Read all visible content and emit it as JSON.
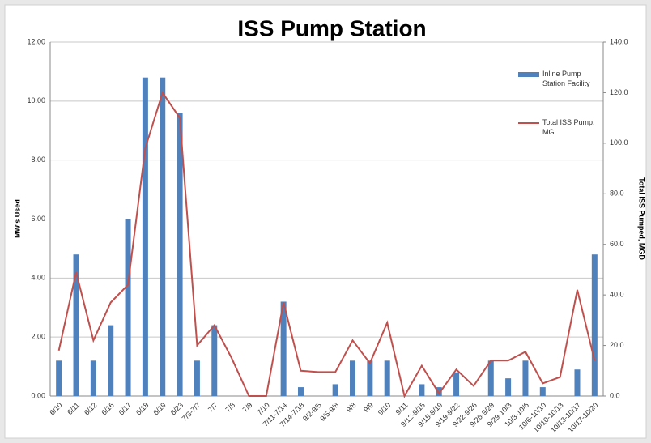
{
  "chart_data": {
    "type": "bar-line",
    "title": "ISS Pump Station",
    "ylabel": "MW's Used",
    "y2label": "Total ISS Pumped, MGD",
    "categories": [
      "6/10",
      "6/11",
      "6/12",
      "6/16",
      "6/17",
      "6/18",
      "6/19",
      "6/23",
      "7/3-7/7",
      "7/7",
      "7/8",
      "7/9",
      "7/10",
      "7/11-7/14",
      "7/14-7/18",
      "9/2-9/5",
      "9/5-9/8",
      "9/8",
      "9/9",
      "9/10",
      "9/11",
      "9/12-9/15",
      "9/15-9/19",
      "9/19-9/22",
      "9/22-9/26",
      "9/26-9/29",
      "9/29-10/3",
      "10/3-10/6",
      "10/6-10/10",
      "10/10-10/13",
      "10/13-10/17",
      "10/17-10/20"
    ],
    "series": [
      {
        "name": "Inline Pump Station Facility",
        "type": "bar",
        "color": "#4f81bd",
        "values": [
          1.2,
          4.8,
          1.2,
          2.4,
          6.0,
          10.8,
          10.8,
          9.6,
          1.2,
          2.4,
          0,
          0,
          0,
          3.2,
          0.3,
          0,
          0.4,
          1.2,
          1.2,
          1.2,
          0,
          0.4,
          0.3,
          0.8,
          0,
          1.2,
          0.6,
          1.2,
          0.3,
          0,
          0.9,
          4.8
        ]
      },
      {
        "name": "Total ISS Pump, MG",
        "type": "line",
        "axis": "y2",
        "color": "#c0504d",
        "values": [
          18,
          49,
          22,
          37,
          44,
          98,
          120,
          110,
          20,
          28,
          15,
          0,
          0,
          37,
          10,
          9.5,
          9.5,
          22,
          13,
          29,
          0,
          12,
          1,
          10.5,
          4,
          14,
          14,
          17.5,
          5,
          7.5,
          42,
          14
        ]
      }
    ],
    "ylim": [
      0,
      12
    ],
    "yticks": [
      {
        "value": 0,
        "label": "0.00"
      },
      {
        "value": 2,
        "label": "2.00"
      },
      {
        "value": 4,
        "label": "4.00"
      },
      {
        "value": 6,
        "label": "6.00"
      },
      {
        "value": 8,
        "label": "8.00"
      },
      {
        "value": 10,
        "label": "10.00"
      },
      {
        "value": 12,
        "label": "12.00"
      }
    ],
    "y2lim": [
      0,
      140
    ],
    "y2ticks": [
      {
        "value": 0,
        "label": "0.0"
      },
      {
        "value": 20,
        "label": "20.0"
      },
      {
        "value": 40,
        "label": "40.0"
      },
      {
        "value": 60,
        "label": "60.0"
      },
      {
        "value": 80,
        "label": "80.0"
      },
      {
        "value": 100,
        "label": "100.0"
      },
      {
        "value": 120,
        "label": "120.0"
      },
      {
        "value": 140,
        "label": "140.0"
      }
    ],
    "grid": true,
    "legend": "top-right"
  }
}
